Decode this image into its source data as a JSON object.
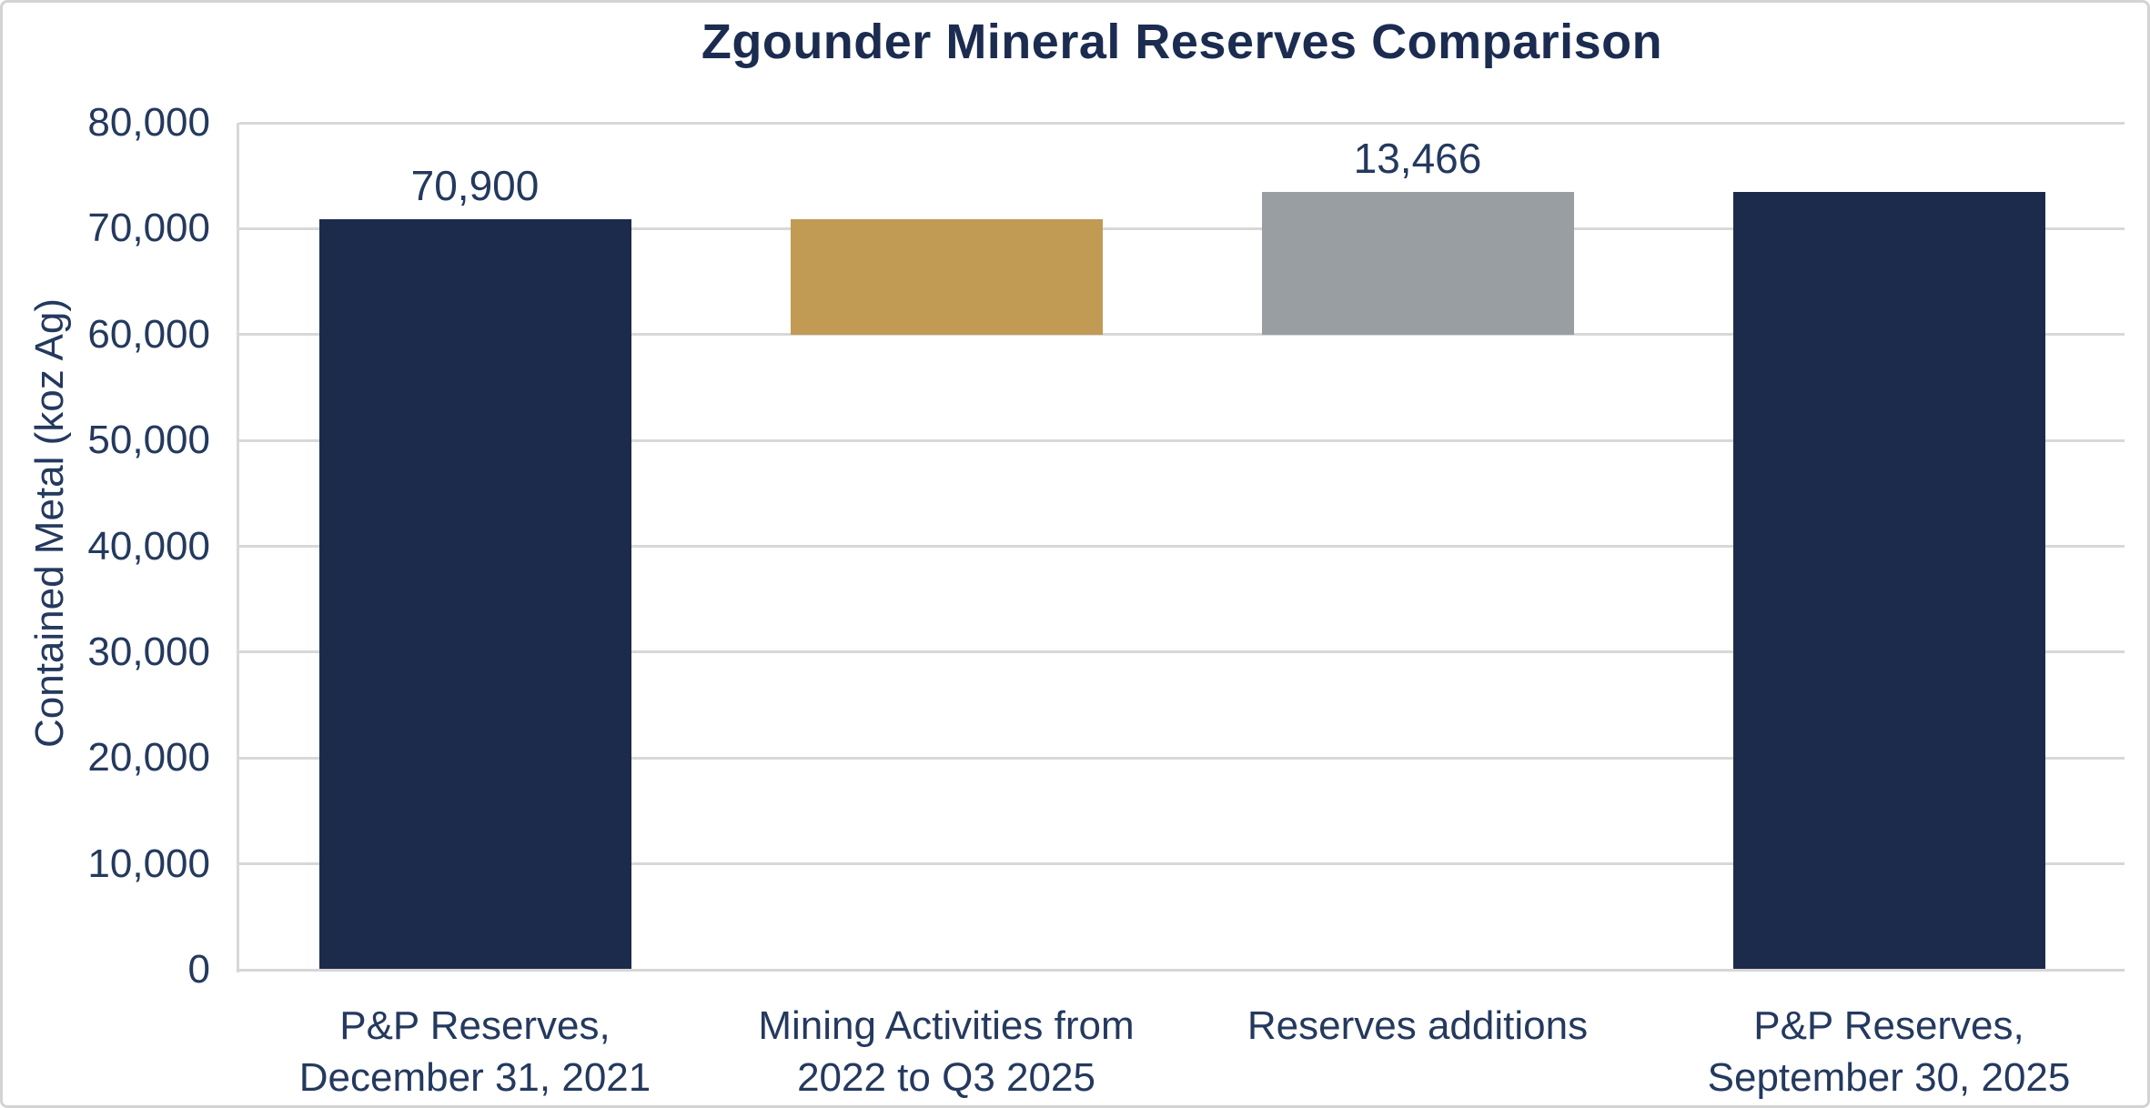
{
  "chart_data": {
    "type": "bar",
    "subtype": "waterfall",
    "title": "Zgounder Mineral Reserves Comparison",
    "xlabel": "",
    "ylabel": "Contained Metal (koz Ag)",
    "ylim": [
      0,
      80000
    ],
    "ytick_step": 10000,
    "ytick_labels": [
      "0",
      "10,000",
      "20,000",
      "30,000",
      "40,000",
      "50,000",
      "60,000",
      "70,000",
      "80,000"
    ],
    "grid": true,
    "legend": false,
    "categories": [
      "P&P Reserves,\nDecember 31, 2021",
      "Mining Activities from\n2022 to Q3 2025",
      "Reserves additions",
      "P&P Reserves,\nSeptember 30, 2025"
    ],
    "bars": [
      {
        "name": "pp-reserves-2021",
        "base": 0,
        "top": 70900,
        "value": 70900,
        "color": "#1c2b4b",
        "data_label": "70,900"
      },
      {
        "name": "mining-activities",
        "base": 60000,
        "top": 70900,
        "value": -10900,
        "color": "#c19a54",
        "data_label": ""
      },
      {
        "name": "reserves-additions",
        "base": 60000,
        "top": 73466,
        "value": 13466,
        "color": "#999ea3",
        "data_label": "13,466"
      },
      {
        "name": "pp-reserves-2025",
        "base": 0,
        "top": 73466,
        "value": 73466,
        "color": "#1c2b4b",
        "data_label": ""
      }
    ],
    "colors": {
      "navy_bar": "#1c2b4b",
      "gold_bar": "#c19a54",
      "gray_bar": "#999ea3",
      "title_text": "#1b2c50",
      "axis_text": "#24395e",
      "gridline": "#d8d8d8",
      "card_border": "#d3d3d3",
      "background": "#ffffff"
    }
  }
}
